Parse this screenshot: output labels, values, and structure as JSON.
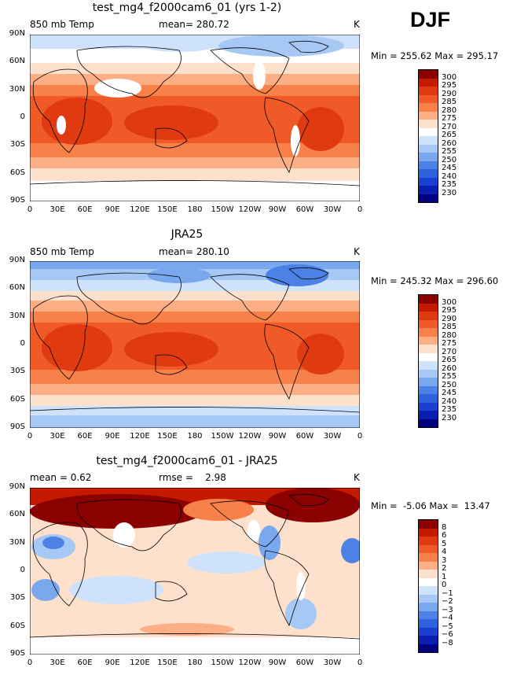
{
  "season": "DJF",
  "panels": [
    {
      "title": "test_mg4_f2000cam6_01 (yrs 1-2)",
      "left_label": "850 mb Temp",
      "center_label": "mean= 280.72",
      "units": "K",
      "minmax": "Min = 255.62 Max = 295.17",
      "colorbar_labels": [
        "300",
        "295",
        "290",
        "285",
        "280",
        "275",
        "270",
        "265",
        "260",
        "255",
        "250",
        "245",
        "240",
        "235",
        "230"
      ]
    },
    {
      "title": "JRA25",
      "left_label": "850 mb Temp",
      "center_label": "mean= 280.10",
      "units": "K",
      "minmax": "Min = 245.32 Max = 296.60",
      "colorbar_labels": [
        "300",
        "295",
        "290",
        "285",
        "280",
        "275",
        "270",
        "265",
        "260",
        "255",
        "250",
        "245",
        "240",
        "235",
        "230"
      ]
    },
    {
      "title": "test_mg4_f2000cam6_01 - JRA25",
      "left_label": "mean =    0.62",
      "center_label": "rmse =    2.98",
      "units": "K",
      "minmax": "Min =  -5.06 Max =  13.47",
      "colorbar_labels": [
        "8",
        "6",
        "5",
        "4",
        "3",
        "2",
        "1",
        "0",
        "−1",
        "−2",
        "−3",
        "−4",
        "−5",
        "−6",
        "−8"
      ]
    }
  ],
  "lat_labels": [
    "90N",
    "60N",
    "30N",
    "0",
    "30S",
    "60S",
    "90S"
  ],
  "lon_labels": [
    "0",
    "30E",
    "60E",
    "90E",
    "120E",
    "150E",
    "180",
    "150W",
    "120W",
    "90W",
    "60W",
    "30W",
    "0"
  ],
  "temp_colors": [
    "#8b0000",
    "#c41a00",
    "#e03b10",
    "#ef5a28",
    "#f78148",
    "#fcae85",
    "#fde1cc",
    "#ffffff",
    "#cfe2fb",
    "#a6c8f5",
    "#7aa8ee",
    "#4c82e6",
    "#2d62dc",
    "#1a3fd1",
    "#0a1fb0",
    "#000080"
  ],
  "diff_colors": [
    "#8b0000",
    "#c41a00",
    "#e03b10",
    "#ef5a28",
    "#f78148",
    "#fcae85",
    "#fde1cc",
    "#ffffff",
    "#cfe2fb",
    "#a6c8f5",
    "#7aa8ee",
    "#4c82e6",
    "#2d62dc",
    "#1a3fd1",
    "#0a1fb0",
    "#000080"
  ]
}
